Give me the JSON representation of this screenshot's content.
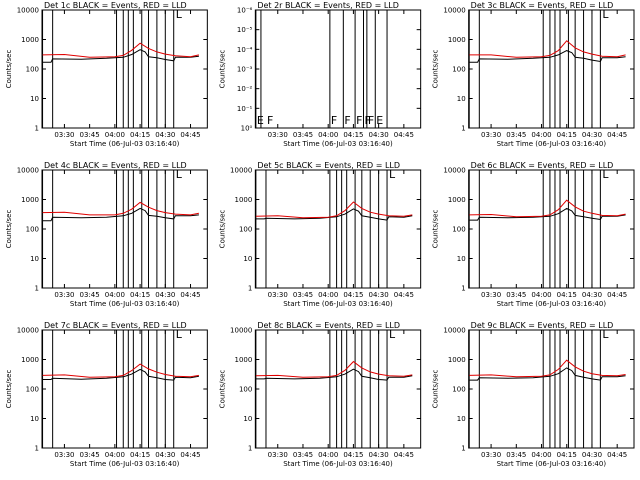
{
  "figure": {
    "colors": {
      "events": "#000000",
      "lld": "#e00000",
      "axes": "#000000",
      "background": "#ffffff"
    }
  },
  "chart_data": [
    {
      "type": "line",
      "title": "Det 1c BLACK = Events, RED = LLD",
      "xlabel": "Start Time (06-Jul-03 03:16:40)",
      "ylabel": "Counts/sec",
      "y_scale": "log",
      "ylim": [
        1,
        10000
      ],
      "y_ticks": [
        "1",
        "10",
        "100",
        "1000",
        "10000"
      ],
      "x_ticks": [
        "03:30",
        "03:45",
        "04:00",
        "04:15",
        "04:30",
        "04:45"
      ],
      "xlim": [
        "03:16:40",
        "04:55:00"
      ],
      "grid": false,
      "vlines": [
        "03:17",
        "03:23",
        "04:01",
        "04:05",
        "04:08",
        "04:11",
        "04:16",
        "04:20",
        "04:25",
        "04:30",
        "04:35"
      ],
      "flag_labels": [
        "L"
      ],
      "series": [
        {
          "name": "Events",
          "color": "#000000",
          "x": [
            "03:17",
            "03:22",
            "03:23",
            "03:40",
            "03:55",
            "04:05",
            "04:10",
            "04:15",
            "04:18",
            "04:20",
            "04:25",
            "04:30",
            "04:35",
            "04:36",
            "04:45",
            "04:50"
          ],
          "values": [
            170,
            170,
            220,
            215,
            230,
            250,
            310,
            450,
            380,
            260,
            240,
            210,
            190,
            250,
            250,
            270
          ]
        },
        {
          "name": "LLD",
          "color": "#e00000",
          "x": [
            "03:17",
            "03:30",
            "03:45",
            "04:00",
            "04:05",
            "04:10",
            "04:15",
            "04:20",
            "04:25",
            "04:30",
            "04:36",
            "04:45",
            "04:50"
          ],
          "values": [
            300,
            310,
            250,
            260,
            290,
            430,
            750,
            500,
            380,
            320,
            280,
            260,
            300
          ]
        }
      ]
    },
    {
      "type": "line",
      "title": "Det 2r BLACK = Events, RED = LLD",
      "xlabel": "Start Time (06-Jul-03 03:16:40)",
      "ylabel": "Counts/sec",
      "y_scale": "log",
      "ylim": [
        1,
        1e-06
      ],
      "y_ticks": [
        "10⁰",
        "10⁻¹",
        "10⁻²",
        "10⁻³",
        "10⁻⁴",
        "10⁻⁵",
        "10⁻⁶"
      ],
      "x_ticks": [
        "03:30",
        "03:45",
        "04:00",
        "04:15",
        "04:30",
        "04:45"
      ],
      "xlim": [
        "03:16:40",
        "04:55:00"
      ],
      "grid": false,
      "vlines": [
        "03:17",
        "03:20",
        "04:01",
        "04:09",
        "04:16",
        "04:21",
        "04:23",
        "04:28",
        "04:35"
      ],
      "flag_labels": [
        "E",
        "F",
        "F",
        "F",
        "F",
        "F",
        "F",
        "E"
      ],
      "series": []
    },
    {
      "type": "line",
      "title": "Det 3c BLACK = Events, RED = LLD",
      "xlabel": "Start Time (06-Jul-03 03:16:40)",
      "ylabel": "Counts/sec",
      "y_scale": "log",
      "ylim": [
        1,
        10000
      ],
      "y_ticks": [
        "1",
        "10",
        "100",
        "1000",
        "10000"
      ],
      "x_ticks": [
        "03:30",
        "03:45",
        "04:00",
        "04:15",
        "04:30",
        "04:45"
      ],
      "xlim": [
        "03:16:40",
        "04:55:00"
      ],
      "grid": false,
      "vlines": [
        "03:17",
        "03:23",
        "04:01",
        "04:05",
        "04:08",
        "04:11",
        "04:16",
        "04:20",
        "04:25",
        "04:30",
        "04:35"
      ],
      "flag_labels": [
        "L"
      ],
      "series": [
        {
          "name": "Events",
          "color": "#000000",
          "x": [
            "03:17",
            "03:22",
            "03:23",
            "03:40",
            "03:55",
            "04:05",
            "04:10",
            "04:15",
            "04:18",
            "04:20",
            "04:25",
            "04:30",
            "04:35",
            "04:36",
            "04:45",
            "04:50"
          ],
          "values": [
            170,
            170,
            220,
            215,
            230,
            250,
            300,
            420,
            360,
            250,
            230,
            200,
            180,
            240,
            240,
            260
          ]
        },
        {
          "name": "LLD",
          "color": "#e00000",
          "x": [
            "03:17",
            "03:30",
            "03:45",
            "04:00",
            "04:05",
            "04:10",
            "04:15",
            "04:20",
            "04:25",
            "04:30",
            "04:36",
            "04:45",
            "04:50"
          ],
          "values": [
            300,
            300,
            250,
            260,
            290,
            420,
            900,
            520,
            380,
            320,
            270,
            260,
            300
          ]
        }
      ]
    },
    {
      "type": "line",
      "title": "Det 4c BLACK = Events, RED = LLD",
      "xlabel": "Start Time (06-Jul-03 03:16:40)",
      "ylabel": "Counts/sec",
      "y_scale": "log",
      "ylim": [
        1,
        10000
      ],
      "y_ticks": [
        "1",
        "10",
        "100",
        "1000",
        "10000"
      ],
      "x_ticks": [
        "03:30",
        "03:45",
        "04:00",
        "04:15",
        "04:30",
        "04:45"
      ],
      "xlim": [
        "03:16:40",
        "04:55:00"
      ],
      "grid": false,
      "vlines": [
        "03:17",
        "03:23",
        "04:01",
        "04:05",
        "04:08",
        "04:11",
        "04:16",
        "04:20",
        "04:25",
        "04:30",
        "04:35"
      ],
      "flag_labels": [
        "L"
      ],
      "series": [
        {
          "name": "Events",
          "color": "#000000",
          "x": [
            "03:17",
            "03:22",
            "03:23",
            "03:40",
            "03:55",
            "04:05",
            "04:10",
            "04:15",
            "04:18",
            "04:20",
            "04:25",
            "04:30",
            "04:35",
            "04:36",
            "04:45",
            "04:50"
          ],
          "values": [
            190,
            190,
            250,
            240,
            250,
            280,
            340,
            500,
            420,
            290,
            270,
            240,
            220,
            280,
            280,
            300
          ]
        },
        {
          "name": "LLD",
          "color": "#e00000",
          "x": [
            "03:17",
            "03:30",
            "03:45",
            "04:00",
            "04:05",
            "04:10",
            "04:15",
            "04:20",
            "04:25",
            "04:30",
            "04:36",
            "04:45",
            "04:50"
          ],
          "values": [
            360,
            370,
            300,
            300,
            340,
            470,
            800,
            550,
            420,
            360,
            320,
            300,
            340
          ]
        }
      ]
    },
    {
      "type": "line",
      "title": "Det 5c BLACK = Events, RED = LLD",
      "xlabel": "Start Time (06-Jul-03 03:16:40)",
      "ylabel": "Counts/sec",
      "y_scale": "log",
      "ylim": [
        1,
        10000
      ],
      "y_ticks": [
        "1",
        "10",
        "100",
        "1000",
        "10000"
      ],
      "x_ticks": [
        "03:30",
        "03:45",
        "04:00",
        "04:15",
        "04:30",
        "04:45"
      ],
      "xlim": [
        "03:16:40",
        "04:55:00"
      ],
      "grid": false,
      "vlines": [
        "03:17",
        "03:23",
        "04:01",
        "04:05",
        "04:08",
        "04:11",
        "04:16",
        "04:20",
        "04:25",
        "04:30",
        "04:35"
      ],
      "flag_labels": [
        "L"
      ],
      "series": [
        {
          "name": "Events",
          "color": "#000000",
          "x": [
            "03:17",
            "03:22",
            "03:23",
            "03:40",
            "03:55",
            "04:05",
            "04:10",
            "04:15",
            "04:18",
            "04:20",
            "04:25",
            "04:30",
            "04:35",
            "04:36",
            "04:45",
            "04:50"
          ],
          "values": [
            220,
            220,
            230,
            220,
            230,
            260,
            320,
            480,
            400,
            280,
            250,
            220,
            200,
            260,
            250,
            280
          ]
        },
        {
          "name": "LLD",
          "color": "#e00000",
          "x": [
            "03:17",
            "03:30",
            "03:45",
            "04:00",
            "04:05",
            "04:10",
            "04:15",
            "04:20",
            "04:25",
            "04:30",
            "04:36",
            "04:45",
            "04:50"
          ],
          "values": [
            270,
            280,
            240,
            250,
            280,
            420,
            820,
            500,
            370,
            320,
            280,
            270,
            300
          ]
        }
      ]
    },
    {
      "type": "line",
      "title": "Det 6c BLACK = Events, RED = LLD",
      "xlabel": "Start Time (06-Jul-03 03:16:40)",
      "ylabel": "Counts/sec",
      "y_scale": "log",
      "ylim": [
        1,
        10000
      ],
      "y_ticks": [
        "1",
        "10",
        "100",
        "1000",
        "10000"
      ],
      "x_ticks": [
        "03:30",
        "03:45",
        "04:00",
        "04:15",
        "04:30",
        "04:45"
      ],
      "xlim": [
        "03:16:40",
        "04:55:00"
      ],
      "grid": false,
      "vlines": [
        "03:17",
        "03:23",
        "04:01",
        "04:05",
        "04:08",
        "04:11",
        "04:16",
        "04:20",
        "04:25",
        "04:30",
        "04:35"
      ],
      "flag_labels": [
        "L"
      ],
      "series": [
        {
          "name": "Events",
          "color": "#000000",
          "x": [
            "03:17",
            "03:22",
            "03:23",
            "03:40",
            "03:55",
            "04:05",
            "04:10",
            "04:15",
            "04:18",
            "04:20",
            "04:25",
            "04:30",
            "04:35",
            "04:36",
            "04:45",
            "04:50"
          ],
          "values": [
            200,
            200,
            250,
            240,
            250,
            270,
            330,
            500,
            410,
            290,
            260,
            230,
            210,
            270,
            270,
            300
          ]
        },
        {
          "name": "LLD",
          "color": "#e00000",
          "x": [
            "03:17",
            "03:30",
            "03:45",
            "04:00",
            "04:05",
            "04:10",
            "04:15",
            "04:20",
            "04:25",
            "04:30",
            "04:36",
            "04:45",
            "04:50"
          ],
          "values": [
            300,
            310,
            260,
            270,
            300,
            450,
            950,
            560,
            400,
            340,
            290,
            280,
            320
          ]
        }
      ]
    },
    {
      "type": "line",
      "title": "Det 7c BLACK = Events, RED = LLD",
      "xlabel": "Start Time (06-Jul-03 03:16:40)",
      "ylabel": "Counts/sec",
      "y_scale": "log",
      "ylim": [
        1,
        10000
      ],
      "y_ticks": [
        "1",
        "10",
        "100",
        "1000",
        "10000"
      ],
      "x_ticks": [
        "03:30",
        "03:45",
        "04:00",
        "04:15",
        "04:30",
        "04:45"
      ],
      "xlim": [
        "03:16:40",
        "04:55:00"
      ],
      "grid": false,
      "vlines": [
        "03:17",
        "03:23",
        "04:01",
        "04:05",
        "04:08",
        "04:11",
        "04:16",
        "04:20",
        "04:25",
        "04:30",
        "04:35"
      ],
      "flag_labels": [
        "L"
      ],
      "series": [
        {
          "name": "Events",
          "color": "#000000",
          "x": [
            "03:17",
            "03:22",
            "03:23",
            "03:40",
            "03:55",
            "04:05",
            "04:10",
            "04:15",
            "04:18",
            "04:20",
            "04:25",
            "04:30",
            "04:35",
            "04:36",
            "04:45",
            "04:50"
          ],
          "values": [
            210,
            210,
            230,
            215,
            230,
            260,
            320,
            460,
            380,
            270,
            240,
            210,
            200,
            250,
            240,
            270
          ]
        },
        {
          "name": "LLD",
          "color": "#e00000",
          "x": [
            "03:17",
            "03:30",
            "03:45",
            "04:00",
            "04:05",
            "04:10",
            "04:15",
            "04:20",
            "04:25",
            "04:30",
            "04:36",
            "04:45",
            "04:50"
          ],
          "values": [
            290,
            300,
            250,
            260,
            290,
            420,
            700,
            480,
            370,
            310,
            270,
            260,
            290
          ]
        }
      ]
    },
    {
      "type": "line",
      "title": "Det 8c BLACK = Events, RED = LLD",
      "xlabel": "Start Time (06-Jul-03 03:16:40)",
      "ylabel": "Counts/sec",
      "y_scale": "log",
      "ylim": [
        1,
        10000
      ],
      "y_ticks": [
        "1",
        "10",
        "100",
        "1000",
        "10000"
      ],
      "x_ticks": [
        "03:30",
        "03:45",
        "04:00",
        "04:15",
        "04:30",
        "04:45"
      ],
      "xlim": [
        "03:16:40",
        "04:55:00"
      ],
      "grid": false,
      "vlines": [
        "03:17",
        "03:23",
        "04:01",
        "04:05",
        "04:08",
        "04:11",
        "04:16",
        "04:20",
        "04:25",
        "04:30",
        "04:35"
      ],
      "flag_labels": [
        "L"
      ],
      "series": [
        {
          "name": "Events",
          "color": "#000000",
          "x": [
            "03:17",
            "03:22",
            "03:23",
            "03:40",
            "03:55",
            "04:05",
            "04:10",
            "04:15",
            "04:18",
            "04:20",
            "04:25",
            "04:30",
            "04:35",
            "04:36",
            "04:45",
            "04:50"
          ],
          "values": [
            220,
            220,
            230,
            220,
            230,
            260,
            320,
            470,
            390,
            270,
            240,
            210,
            200,
            250,
            250,
            280
          ]
        },
        {
          "name": "LLD",
          "color": "#e00000",
          "x": [
            "03:17",
            "03:30",
            "03:45",
            "04:00",
            "04:05",
            "04:10",
            "04:15",
            "04:20",
            "04:25",
            "04:30",
            "04:36",
            "04:45",
            "04:50"
          ],
          "values": [
            280,
            290,
            250,
            260,
            290,
            430,
            850,
            520,
            380,
            320,
            280,
            270,
            300
          ]
        }
      ]
    },
    {
      "type": "line",
      "title": "Det 9c BLACK = Events, RED = LLD",
      "xlabel": "Start Time (06-Jul-03 03:16:40)",
      "ylabel": "Counts/sec",
      "y_scale": "log",
      "ylim": [
        1,
        10000
      ],
      "y_ticks": [
        "1",
        "10",
        "100",
        "1000",
        "10000"
      ],
      "x_ticks": [
        "03:30",
        "03:45",
        "04:00",
        "04:15",
        "04:30",
        "04:45"
      ],
      "xlim": [
        "03:16:40",
        "04:55:00"
      ],
      "grid": false,
      "vlines": [
        "03:17",
        "03:23",
        "04:01",
        "04:05",
        "04:08",
        "04:11",
        "04:16",
        "04:20",
        "04:25",
        "04:30",
        "04:35"
      ],
      "flag_labels": [
        "L"
      ],
      "series": [
        {
          "name": "Events",
          "color": "#000000",
          "x": [
            "03:17",
            "03:22",
            "03:23",
            "03:40",
            "03:55",
            "04:05",
            "04:10",
            "04:15",
            "04:18",
            "04:20",
            "04:25",
            "04:30",
            "04:35",
            "04:36",
            "04:45",
            "04:50"
          ],
          "values": [
            200,
            200,
            240,
            230,
            240,
            270,
            330,
            520,
            420,
            290,
            250,
            220,
            200,
            260,
            260,
            280
          ]
        },
        {
          "name": "LLD",
          "color": "#e00000",
          "x": [
            "03:17",
            "03:30",
            "03:45",
            "04:00",
            "04:05",
            "04:10",
            "04:15",
            "04:20",
            "04:25",
            "04:30",
            "04:36",
            "04:45",
            "04:50"
          ],
          "values": [
            290,
            300,
            260,
            270,
            300,
            460,
            950,
            560,
            400,
            330,
            290,
            280,
            310
          ]
        }
      ]
    }
  ]
}
